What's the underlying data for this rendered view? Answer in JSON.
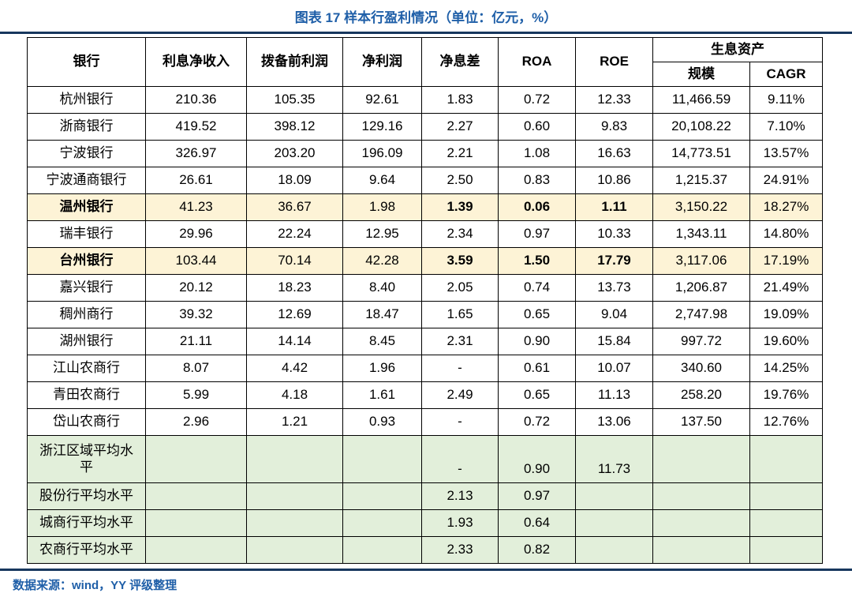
{
  "title": "图表 17 样本行盈利情况（单位：亿元，%）",
  "footer": "数据来源：wind，YY 评级整理",
  "colors": {
    "accent_blue": "#1f5fa8",
    "rule_navy": "#17375e",
    "highlight_yellow": "#fdf3d6",
    "summary_green": "#e2efda"
  },
  "table": {
    "headers": {
      "bank": "银行",
      "net_interest_income": "利息净收入",
      "pre_provision_profit": "拨备前利润",
      "net_profit": "净利润",
      "net_interest_margin": "净息差",
      "roa": "ROA",
      "roe": "ROE",
      "earning_assets": "生息资产",
      "scale": "规模",
      "cagr": "CAGR"
    },
    "rows": [
      {
        "bank": "杭州银行",
        "style": "normal",
        "cells": [
          "210.36",
          "105.35",
          "92.61",
          "1.83",
          "0.72",
          "12.33",
          "11,466.59",
          "9.11%"
        ]
      },
      {
        "bank": "浙商银行",
        "style": "normal",
        "cells": [
          "419.52",
          "398.12",
          "129.16",
          "2.27",
          "0.60",
          "9.83",
          "20,108.22",
          "7.10%"
        ]
      },
      {
        "bank": "宁波银行",
        "style": "normal",
        "cells": [
          "326.97",
          "203.20",
          "196.09",
          "2.21",
          "1.08",
          "16.63",
          "14,773.51",
          "13.57%"
        ]
      },
      {
        "bank": "宁波通商银行",
        "style": "normal",
        "cells": [
          "26.61",
          "18.09",
          "9.64",
          "2.50",
          "0.83",
          "10.86",
          "1,215.37",
          "24.91%"
        ]
      },
      {
        "bank": "温州银行",
        "style": "highlight",
        "cells": [
          "41.23",
          "36.67",
          "1.98",
          "1.39",
          "0.06",
          "1.11",
          "3,150.22",
          "18.27%"
        ]
      },
      {
        "bank": "瑞丰银行",
        "style": "normal",
        "cells": [
          "29.96",
          "22.24",
          "12.95",
          "2.34",
          "0.97",
          "10.33",
          "1,343.11",
          "14.80%"
        ]
      },
      {
        "bank": "台州银行",
        "style": "highlight",
        "cells": [
          "103.44",
          "70.14",
          "42.28",
          "3.59",
          "1.50",
          "17.79",
          "3,117.06",
          "17.19%"
        ]
      },
      {
        "bank": "嘉兴银行",
        "style": "normal",
        "cells": [
          "20.12",
          "18.23",
          "8.40",
          "2.05",
          "0.74",
          "13.73",
          "1,206.87",
          "21.49%"
        ]
      },
      {
        "bank": "稠州商行",
        "style": "normal",
        "cells": [
          "39.32",
          "12.69",
          "18.47",
          "1.65",
          "0.65",
          "9.04",
          "2,747.98",
          "19.09%"
        ]
      },
      {
        "bank": "湖州银行",
        "style": "normal",
        "cells": [
          "21.11",
          "14.14",
          "8.45",
          "2.31",
          "0.90",
          "15.84",
          "997.72",
          "19.60%"
        ]
      },
      {
        "bank": "江山农商行",
        "style": "normal",
        "cells": [
          "8.07",
          "4.42",
          "1.96",
          "-",
          "0.61",
          "10.07",
          "340.60",
          "14.25%"
        ]
      },
      {
        "bank": "青田农商行",
        "style": "normal",
        "cells": [
          "5.99",
          "4.18",
          "1.61",
          "2.49",
          "0.65",
          "11.13",
          "258.20",
          "19.76%"
        ]
      },
      {
        "bank": "岱山农商行",
        "style": "normal",
        "cells": [
          "2.96",
          "1.21",
          "0.93",
          "-",
          "0.72",
          "13.06",
          "137.50",
          "12.76%"
        ]
      },
      {
        "bank": "浙江区域平均水平",
        "style": "green tall",
        "cells": [
          "",
          "",
          "",
          "-",
          "0.90",
          "11.73",
          "",
          ""
        ]
      },
      {
        "bank": "股份行平均水平",
        "style": "green",
        "cells": [
          "",
          "",
          "",
          "2.13",
          "0.97",
          "",
          "",
          ""
        ]
      },
      {
        "bank": "城商行平均水平",
        "style": "green",
        "cells": [
          "",
          "",
          "",
          "1.93",
          "0.64",
          "",
          "",
          ""
        ]
      },
      {
        "bank": "农商行平均水平",
        "style": "green",
        "cells": [
          "",
          "",
          "",
          "2.33",
          "0.82",
          "",
          "",
          ""
        ]
      }
    ]
  }
}
